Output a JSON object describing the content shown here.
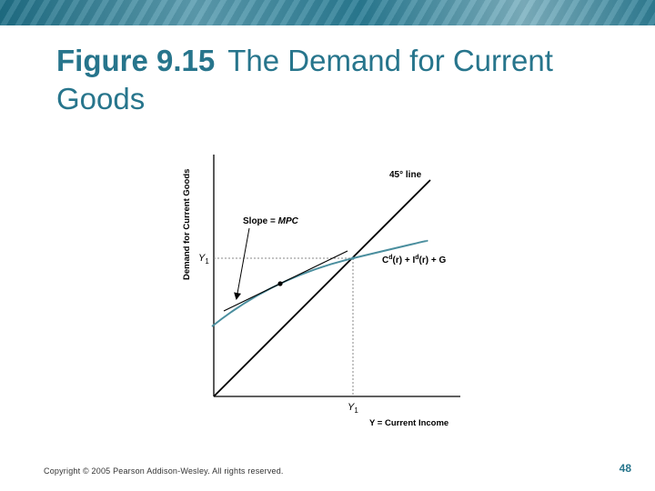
{
  "slide": {
    "title_number": "Figure 9.15",
    "title_text": "The Demand for Current Goods",
    "footer": "Copyright © 2005 Pearson Addison-Wesley. All rights reserved.",
    "page_number": "48"
  },
  "diagram": {
    "y_axis_label": "Demand for Current Goods",
    "x_axis_label": "Y = Current Income",
    "y_tick_label": "Y",
    "y_tick_sub": "1",
    "x_tick_label": "Y",
    "x_tick_sub": "1",
    "line_45_label": "45° line",
    "slope_label_prefix": "Slope = ",
    "slope_label_var": "MPC",
    "curve_label": {
      "c": "C",
      "c_sup": "d",
      "c_arg": "(r)",
      "plus1": " + ",
      "i": "I",
      "i_sup": "d",
      "i_arg": "(r)",
      "plus2": " + G"
    },
    "colors": {
      "axis": "#000000",
      "line_45": "#000000",
      "demand_curve": "#4a8e9e",
      "tangent": "#000000",
      "guide": "#888888",
      "title": "#27758c"
    }
  }
}
